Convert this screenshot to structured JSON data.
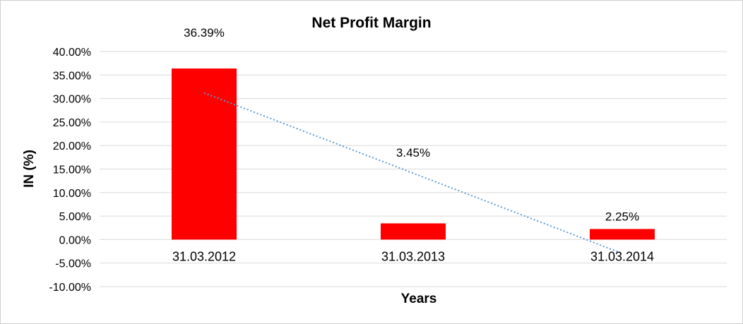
{
  "chart_data": {
    "type": "bar",
    "title": "Net Profit Margin",
    "xlabel": "Years",
    "ylabel": "IN (%)",
    "categories": [
      "31.03.2012",
      "31.03.2013",
      "31.03.2014"
    ],
    "values": [
      36.39,
      3.45,
      2.25
    ],
    "data_labels": [
      "36.39%",
      "3.45%",
      "2.25%"
    ],
    "y_ticks": [
      40,
      35,
      30,
      25,
      20,
      15,
      10,
      5,
      0,
      -5,
      -10
    ],
    "y_tick_labels": [
      "40.00%",
      "35.00%",
      "30.00%",
      "25.00%",
      "20.00%",
      "15.00%",
      "10.00%",
      "5.00%",
      "0.00%",
      "-5.00%",
      "-10.00%"
    ],
    "ylim": [
      -10,
      40
    ],
    "grid": true,
    "trendline": {
      "type": "linear",
      "style": "dotted",
      "start_value": 31.19,
      "end_value": -2.95
    },
    "colors": {
      "bar": "#ff0000",
      "trendline": "#5b9bd5",
      "grid": "#d9d9d9"
    }
  }
}
